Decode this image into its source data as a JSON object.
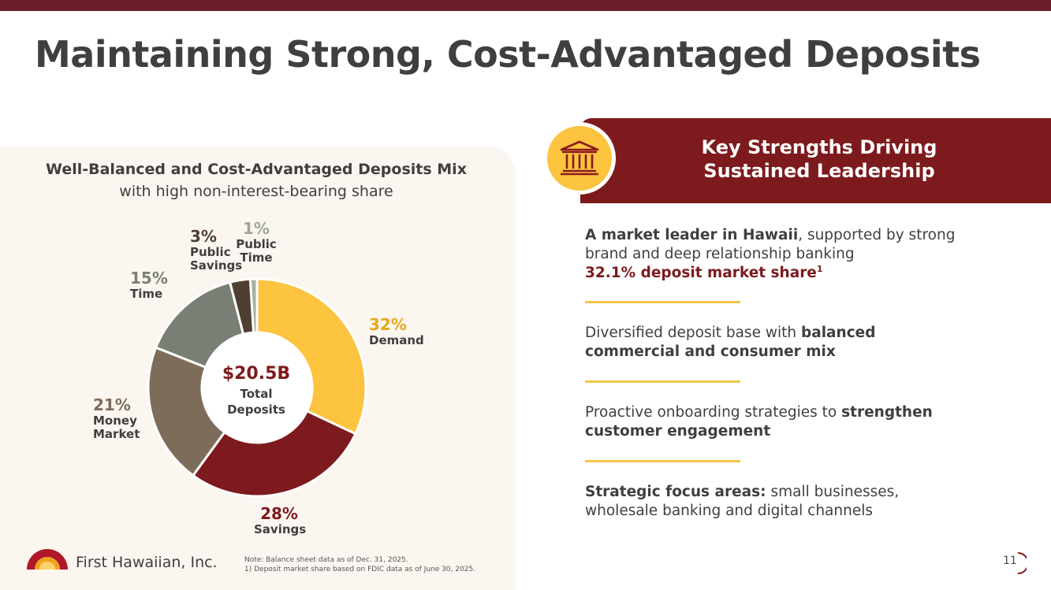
{
  "title": "Maintaining Strong, Cost-Advantaged Deposits",
  "chart_data": {
    "type": "pie",
    "title": "Well-Balanced and Cost-Advantaged Deposits Mix",
    "subtitle": "with high non-interest-bearing share",
    "center_value": "$20.5B",
    "center_label_1": "Total",
    "center_label_2": "Deposits",
    "slices": [
      {
        "label": "Demand",
        "pct_text": "32%",
        "value": 32,
        "color": "#fcc43f",
        "label_color": "#e8a916"
      },
      {
        "label": "Savings",
        "pct_text": "28%",
        "value": 28,
        "color": "#7d1a1d",
        "label_color": "#7d1a1d"
      },
      {
        "label": "Money Market",
        "pct_text": "21%",
        "value": 21,
        "color": "#7e6c5a",
        "label_color": "#7e6c5a"
      },
      {
        "label": "Time",
        "pct_text": "15%",
        "value": 15,
        "color": "#7a7f75",
        "label_color": "#7a7f75"
      },
      {
        "label": "Public Savings",
        "pct_text": "3%",
        "value": 3,
        "color": "#4e3f32",
        "label_color": "#4e3f32"
      },
      {
        "label": "Public Time",
        "pct_text": "1%",
        "value": 1,
        "color": "#a6b2a3",
        "label_color": "#9aa996"
      }
    ],
    "labels": {
      "demand": {
        "pct": "32%",
        "l1": "Demand"
      },
      "savings": {
        "pct": "28%",
        "l1": "Savings"
      },
      "money_market": {
        "pct": "21%",
        "l1": "Money",
        "l2": "Market"
      },
      "time": {
        "pct": "15%",
        "l1": "Time"
      },
      "public_savings": {
        "pct": "3%",
        "l1": "Public",
        "l2": "Savings"
      },
      "public_time": {
        "pct": "1%",
        "l1": "Public",
        "l2": "Time"
      }
    }
  },
  "footer": {
    "logo_text": "First Hawaiian, Inc.",
    "note_1": "Note: Balance sheet data as of Dec. 31, 2025.",
    "note_2": "1)  Deposit market share based on FDIC data as of June 30, 2025.",
    "page_number": "11"
  },
  "strengths": {
    "heading_1": "Key Strengths Driving",
    "heading_2": "Sustained Leadership",
    "item1": {
      "bold": "A market leader in Hawaii",
      "rest": ", supported by strong brand and deep relationship banking",
      "highlight": "32.1% deposit market share",
      "sup": "1"
    },
    "item2": {
      "plain": "Diversified deposit base with ",
      "bold": "balanced commercial and consumer mix"
    },
    "item3": {
      "plain": "Proactive onboarding strategies to ",
      "bold": "strengthen customer engagement"
    },
    "item4": {
      "bold": "Strategic focus areas:",
      "rest": " small businesses, wholesale banking and digital channels"
    }
  },
  "colors": {
    "brand": "#7d1a1d",
    "accent": "#fcc43f",
    "panel": "#fcf6f1"
  },
  "icons": {
    "banner": "bank-building-icon"
  }
}
